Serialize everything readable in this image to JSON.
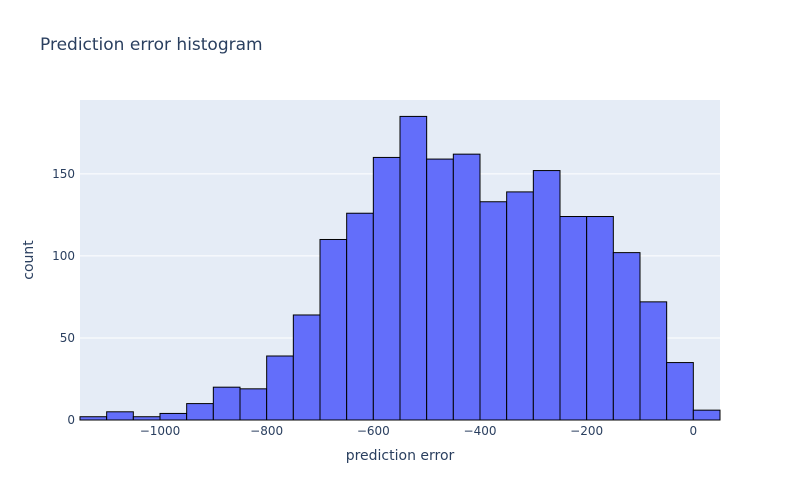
{
  "chart_data": {
    "type": "bar",
    "title": "Prediction error histogram",
    "xlabel": "prediction error",
    "ylabel": "count",
    "xlim": [
      -1150,
      50
    ],
    "ylim": [
      0,
      195
    ],
    "bin_width": 50,
    "x_ticks": [
      -1000,
      -800,
      -600,
      -400,
      -200,
      0
    ],
    "x_tick_labels": [
      "−1000",
      "−800",
      "−600",
      "−400",
      "−200",
      "0"
    ],
    "y_ticks": [
      0,
      50,
      100,
      150
    ],
    "y_tick_labels": [
      "0",
      "50",
      "100",
      "150"
    ],
    "bins": [
      {
        "x0": -1150,
        "x1": -1100,
        "count": 2
      },
      {
        "x0": -1100,
        "x1": -1050,
        "count": 5
      },
      {
        "x0": -1050,
        "x1": -1000,
        "count": 2
      },
      {
        "x0": -1000,
        "x1": -950,
        "count": 4
      },
      {
        "x0": -950,
        "x1": -900,
        "count": 10
      },
      {
        "x0": -900,
        "x1": -850,
        "count": 20
      },
      {
        "x0": -850,
        "x1": -800,
        "count": 19
      },
      {
        "x0": -800,
        "x1": -750,
        "count": 39
      },
      {
        "x0": -750,
        "x1": -700,
        "count": 64
      },
      {
        "x0": -700,
        "x1": -650,
        "count": 110
      },
      {
        "x0": -650,
        "x1": -600,
        "count": 126
      },
      {
        "x0": -600,
        "x1": -550,
        "count": 160
      },
      {
        "x0": -550,
        "x1": -500,
        "count": 185
      },
      {
        "x0": -500,
        "x1": -450,
        "count": 159
      },
      {
        "x0": -450,
        "x1": -400,
        "count": 162
      },
      {
        "x0": -400,
        "x1": -350,
        "count": 133
      },
      {
        "x0": -350,
        "x1": -300,
        "count": 139
      },
      {
        "x0": -300,
        "x1": -250,
        "count": 152
      },
      {
        "x0": -250,
        "x1": -200,
        "count": 124
      },
      {
        "x0": -200,
        "x1": -150,
        "count": 124
      },
      {
        "x0": -150,
        "x1": -100,
        "count": 102
      },
      {
        "x0": -100,
        "x1": -50,
        "count": 72
      },
      {
        "x0": -50,
        "x1": 0,
        "count": 35
      },
      {
        "x0": 0,
        "x1": 50,
        "count": 6
      }
    ],
    "grid": true,
    "legend": "none",
    "colors": {
      "bar_fill": "#636efa",
      "bar_stroke": "#000000",
      "plot_bg": "#e5ecf6",
      "grid": "#ffffff",
      "text": "#2a3f5f"
    }
  }
}
